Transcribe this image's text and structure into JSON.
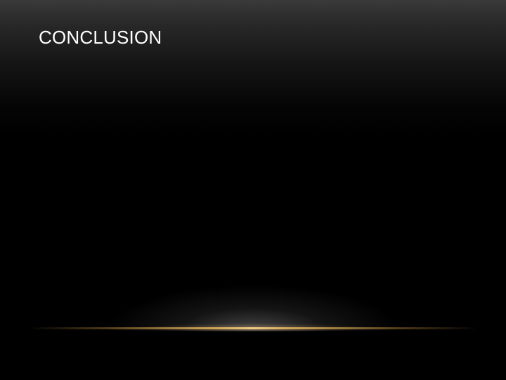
{
  "slide": {
    "title": "CONCLUSION"
  },
  "theme": {
    "background": "#000000",
    "accent_line": "#d3a656",
    "title_color": "#ffffff"
  }
}
